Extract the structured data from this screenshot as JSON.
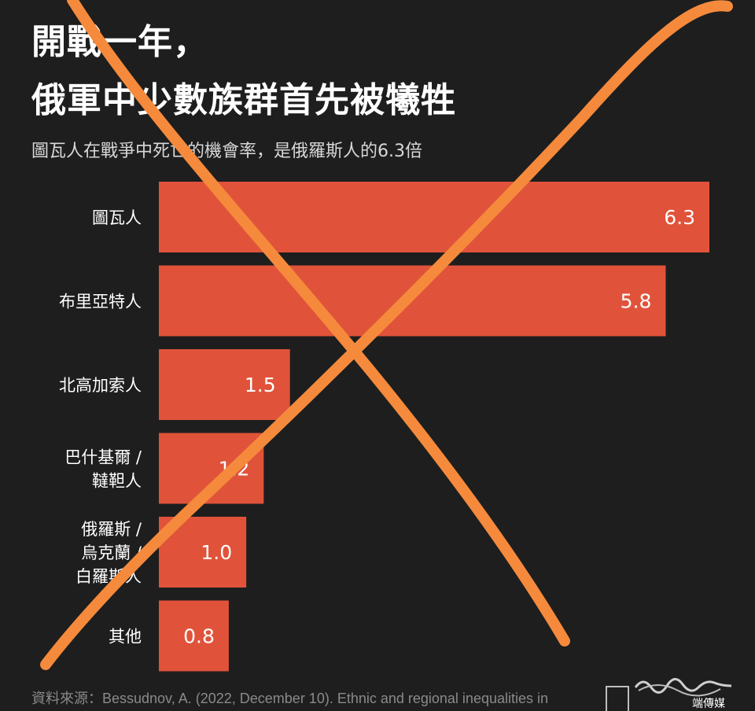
{
  "title": {
    "line1": "開戰一年，",
    "line2": "俄軍中少數族群首先被犧牲"
  },
  "subtitle": "圖瓦人在戰爭中死亡的機會率，是俄羅斯人的6.3倍",
  "source": "資料來源：Bessudnov, A. (2022, December 10). Ethnic and regional inequalities in",
  "watermark": "端傳媒",
  "colors": {
    "background": "#1e1e1e",
    "bar": "#e0533a",
    "cross": "#f58a3c",
    "text": "#ffffff"
  },
  "chart_data": {
    "type": "bar",
    "orientation": "horizontal",
    "categories": [
      [
        "圖瓦人"
      ],
      [
        "布里亞特人"
      ],
      [
        "北高加索人"
      ],
      [
        "巴什基爾 /",
        "韃靼人"
      ],
      [
        "俄羅斯 /",
        "烏克蘭 /",
        "白羅斯人"
      ],
      [
        "其他"
      ]
    ],
    "values": [
      6.3,
      5.8,
      1.5,
      1.2,
      1.0,
      0.8
    ],
    "value_labels": [
      "6.3",
      "5.8",
      "1.5",
      "1.2",
      "1.0",
      "0.8"
    ],
    "grid": false,
    "legend": "none"
  }
}
